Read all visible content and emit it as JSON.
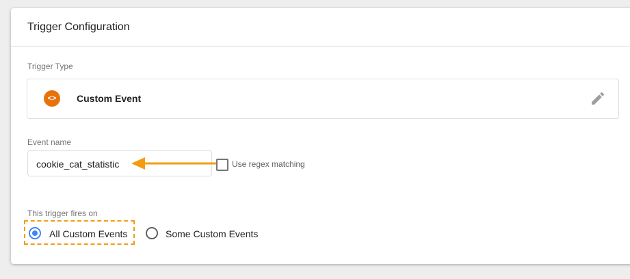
{
  "header": {
    "title": "Trigger Configuration"
  },
  "trigger_type": {
    "label": "Trigger Type",
    "name": "Custom Event",
    "icon": "code-brackets-icon",
    "icon_color": "#e8710a"
  },
  "event_name": {
    "label": "Event name",
    "value": "cookie_cat_statistic",
    "regex_label": "Use regex matching",
    "regex_checked": false
  },
  "fires_on": {
    "label": "This trigger fires on",
    "options": [
      {
        "label": "All Custom Events",
        "selected": true
      },
      {
        "label": "Some Custom Events",
        "selected": false
      }
    ]
  },
  "annotation_color": "#f39c12"
}
